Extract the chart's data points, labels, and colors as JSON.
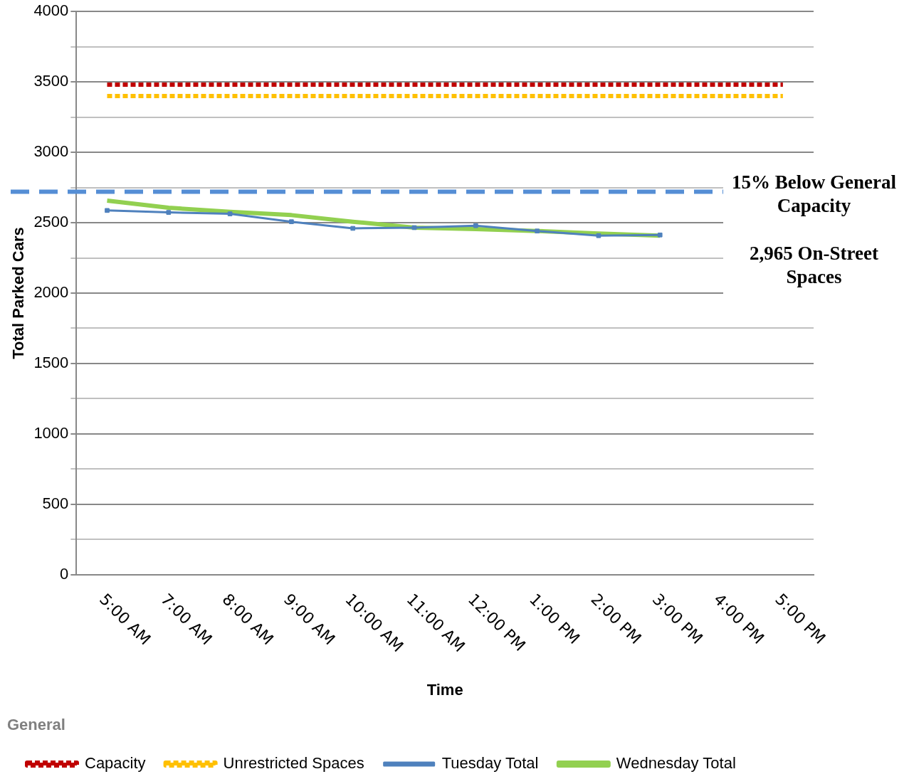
{
  "chart_data": {
    "type": "line",
    "xlabel": "Time",
    "ylabel": "Total Parked Cars",
    "legend_title": "General",
    "legend": "bottom",
    "grid": "y",
    "marker": "none",
    "categories": [
      "5:00 AM",
      "7:00 AM",
      "8:00 AM",
      "9:00 AM",
      "10:00 AM",
      "11:00 AM",
      "12:00 PM",
      "1:00 PM",
      "2:00 PM",
      "3:00 PM",
      "4:00 PM",
      "5:00 PM"
    ],
    "ylim": [
      0,
      4000
    ],
    "yticks": [
      0,
      {
        "value": 250,
        "label": null
      },
      500,
      {
        "value": 750,
        "label": null
      },
      1000,
      {
        "value": 1250,
        "label": null
      },
      1500,
      {
        "value": 1750,
        "label": null
      },
      2000,
      {
        "value": 2250,
        "label": null
      },
      2500,
      {
        "value": 2750,
        "label": null
      },
      3000,
      {
        "value": 3250,
        "label": null
      },
      3500,
      {
        "value": 3750,
        "label": null
      },
      4000
    ],
    "series": [
      {
        "name": "Capacity",
        "color": "#c00000",
        "line_style": "dotted",
        "values": [
          3480,
          3480,
          3480,
          3480,
          3480,
          3480,
          3480,
          3480,
          3480,
          3480,
          3480,
          3480
        ]
      },
      {
        "name": "Unrestricted Spaces",
        "color": "#ffc000",
        "line_style": "dotted",
        "values": [
          3400,
          3400,
          3400,
          3400,
          3400,
          3400,
          3400,
          3400,
          3400,
          3400,
          3400,
          3400
        ]
      },
      {
        "name": "Tuesday Total",
        "color": "#4f81bd",
        "marker": "square",
        "values": [
          2587,
          2573,
          2563,
          2507,
          2460,
          2465,
          2479,
          2441,
          2408,
          2413,
          null,
          null
        ]
      },
      {
        "name": "Wednesday Total",
        "color": "#92d050",
        "values": [
          2657,
          2606,
          2577,
          2554,
          2507,
          2465,
          2455,
          2441,
          2423,
          2408,
          null,
          null
        ]
      }
    ],
    "ref_lines": [
      {
        "axis": "y",
        "value": 2720,
        "color": "#558ed5",
        "line_style": "dashed"
      }
    ],
    "annotations": [
      "15% Below General Capacity",
      "2,965 On-Street Spaces"
    ]
  }
}
